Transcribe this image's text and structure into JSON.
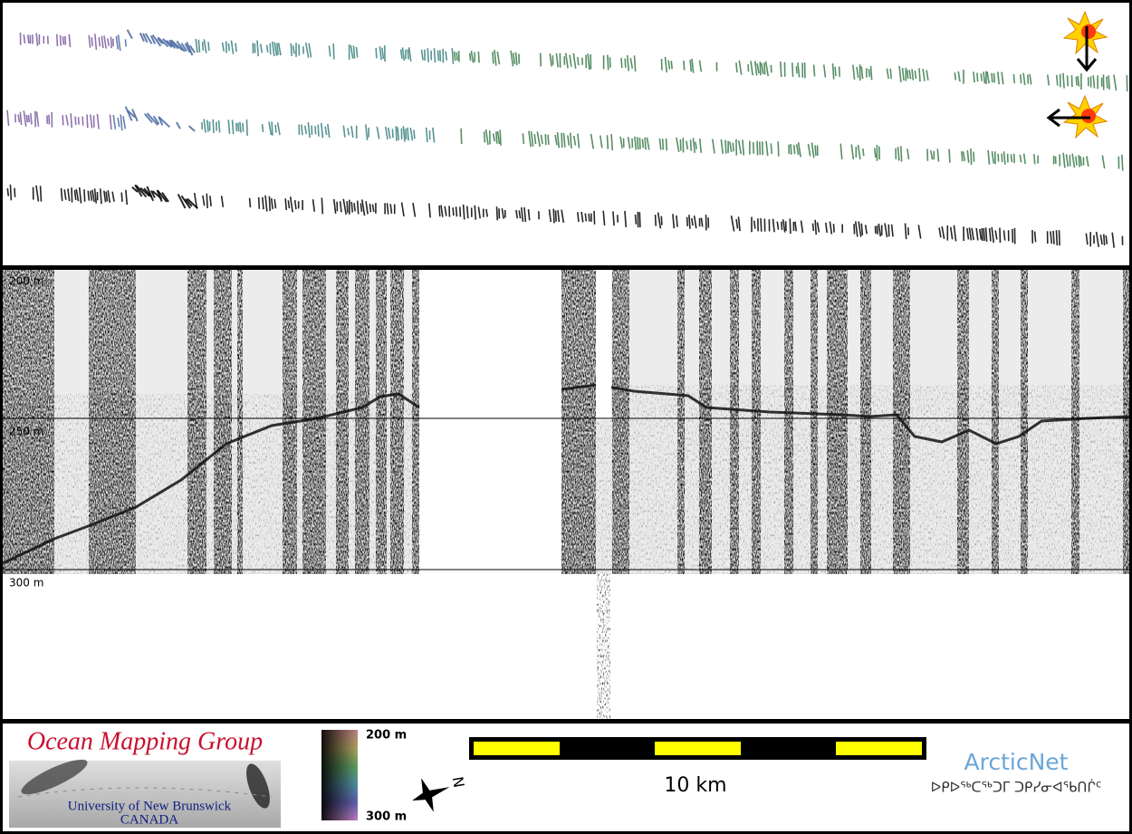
{
  "depth_labels": [
    "200 m",
    "250 m",
    "300 m"
  ],
  "footer": {
    "logo": {
      "title": "Ocean Mapping Group",
      "subtitle": "University of New Brunswick",
      "country": "CANADA"
    },
    "color_scale": {
      "top": "200 m",
      "bottom": "300 m"
    },
    "compass": "N",
    "scale_bar": "10 km",
    "partner": {
      "name": "ArcticNet",
      "name_inuktitut": "ᐅᑭᐅᖅᑕᖅᑐᒥ ᑐᑭᓯᓂᐊᖃᑎᒌᑦ"
    }
  }
}
